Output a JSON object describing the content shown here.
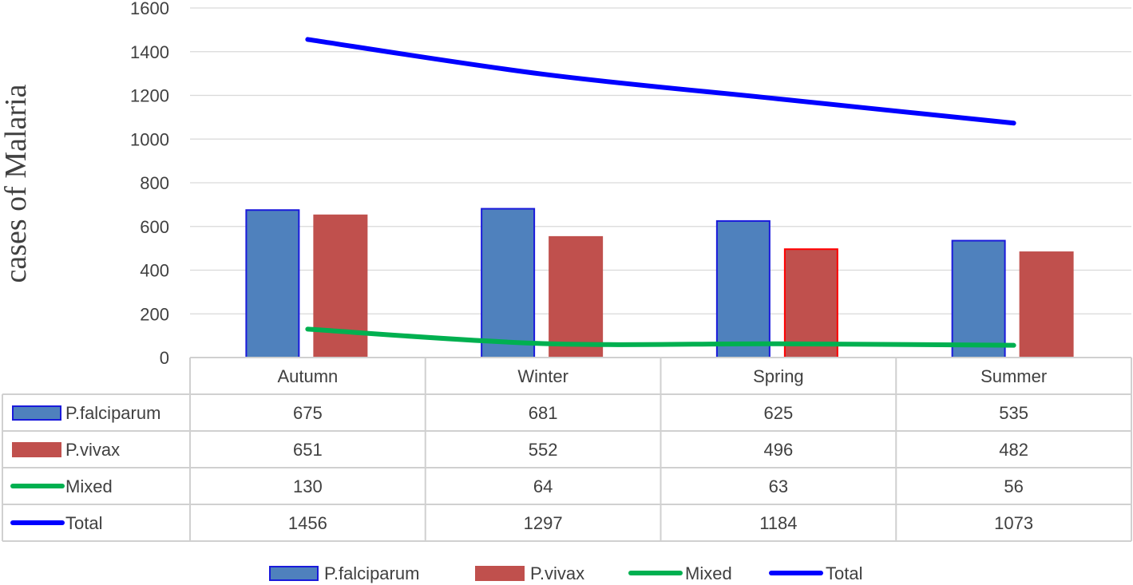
{
  "chart_data": {
    "type": "bar",
    "title": "",
    "xlabel": "",
    "ylabel": "cases of Malaria",
    "ylim": [
      0,
      1600
    ],
    "yticks": [
      0,
      200,
      400,
      600,
      800,
      1000,
      1200,
      1400,
      1600
    ],
    "grid": true,
    "legend_position": "bottom",
    "data_table": true,
    "categories": [
      "Autumn",
      "Winter",
      "Spring",
      "Summer"
    ],
    "series": [
      {
        "name": "P.falciparum",
        "kind": "bar",
        "color": "#4f81bd",
        "edge": "#1a1adb",
        "values": [
          675,
          681,
          625,
          535
        ]
      },
      {
        "name": "P.vivax",
        "kind": "bar",
        "color": "#c0504d",
        "edge": "#c0504d",
        "values": [
          651,
          552,
          496,
          482
        ]
      },
      {
        "name": "Mixed",
        "kind": "line",
        "color": "#00b050",
        "values": [
          130,
          64,
          63,
          56
        ]
      },
      {
        "name": "Total",
        "kind": "line",
        "color": "#0000ff",
        "values": [
          1456,
          1297,
          1184,
          1073
        ]
      }
    ]
  }
}
